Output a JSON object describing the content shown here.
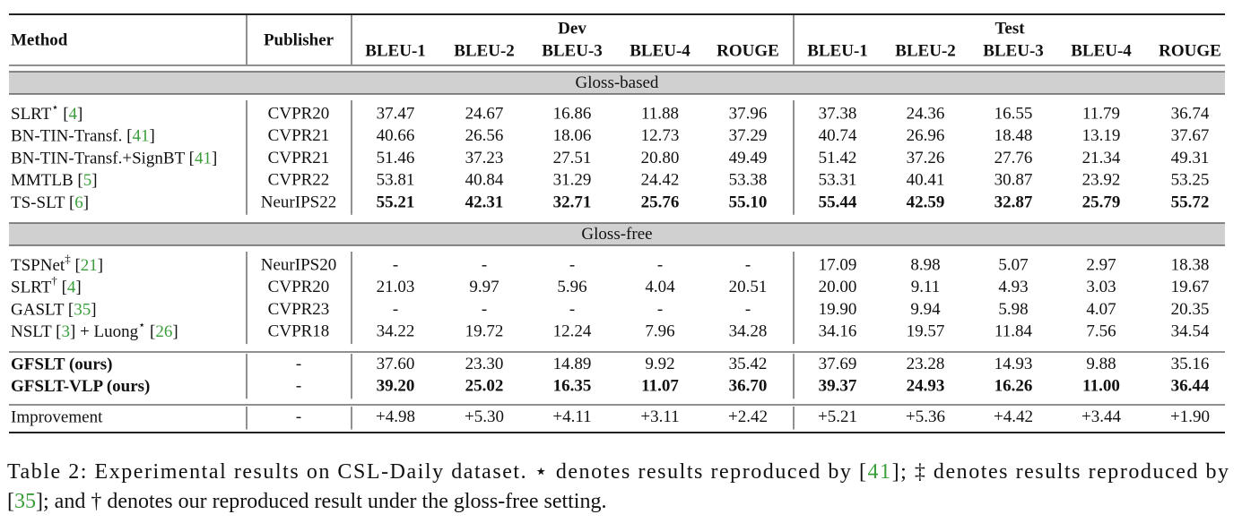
{
  "header": {
    "method": "Method",
    "publisher": "Publisher",
    "groups": [
      {
        "name": "Dev",
        "metrics": [
          "BLEU-1",
          "BLEU-2",
          "BLEU-3",
          "BLEU-4",
          "ROUGE"
        ]
      },
      {
        "name": "Test",
        "metrics": [
          "BLEU-1",
          "BLEU-2",
          "BLEU-3",
          "BLEU-4",
          "ROUGE"
        ]
      }
    ]
  },
  "sections": [
    {
      "title": "Gloss-based",
      "rows": [
        {
          "method": [
            {
              "text": "SLRT"
            },
            {
              "text": "⋆",
              "sup": true
            },
            {
              "text": " ["
            },
            {
              "text": "4",
              "color": "#3a9e3a"
            },
            {
              "text": "]"
            }
          ],
          "publisher": "CVPR20",
          "values": [
            "37.47",
            "24.67",
            "16.86",
            "11.88",
            "37.96",
            "37.38",
            "24.36",
            "16.55",
            "11.79",
            "36.74"
          ]
        },
        {
          "method": [
            {
              "text": "BN-TIN-Transf. ["
            },
            {
              "text": "41",
              "color": "#3a9e3a"
            },
            {
              "text": "]"
            }
          ],
          "publisher": "CVPR21",
          "values": [
            "40.66",
            "26.56",
            "18.06",
            "12.73",
            "37.29",
            "40.74",
            "26.96",
            "18.48",
            "13.19",
            "37.67"
          ]
        },
        {
          "method": [
            {
              "text": "BN-TIN-Transf.+SignBT ["
            },
            {
              "text": "41",
              "color": "#3a9e3a"
            },
            {
              "text": "]"
            }
          ],
          "publisher": "CVPR21",
          "values": [
            "51.46",
            "37.23",
            "27.51",
            "20.80",
            "49.49",
            "51.42",
            "37.26",
            "27.76",
            "21.34",
            "49.31"
          ]
        },
        {
          "method": [
            {
              "text": "MMTLB ["
            },
            {
              "text": "5",
              "color": "#3a9e3a"
            },
            {
              "text": "]"
            }
          ],
          "publisher": "CVPR22",
          "values": [
            "53.81",
            "40.84",
            "31.29",
            "24.42",
            "53.38",
            "53.31",
            "40.41",
            "30.87",
            "23.92",
            "53.25"
          ]
        },
        {
          "method": [
            {
              "text": "TS-SLT ["
            },
            {
              "text": "6",
              "color": "#3a9e3a"
            },
            {
              "text": "]"
            }
          ],
          "publisher": "NeurIPS22",
          "bold_values": true,
          "values": [
            "55.21",
            "42.31",
            "32.71",
            "25.76",
            "55.10",
            "55.44",
            "42.59",
            "32.87",
            "25.79",
            "55.72"
          ]
        }
      ]
    },
    {
      "title": "Gloss-free",
      "rows": [
        {
          "method": [
            {
              "text": "TSPNet"
            },
            {
              "text": "‡",
              "sup": true
            },
            {
              "text": "  ["
            },
            {
              "text": "21",
              "color": "#3a9e3a"
            },
            {
              "text": "]"
            }
          ],
          "publisher": "NeurIPS20",
          "values": [
            "-",
            "-",
            "-",
            "-",
            "-",
            "17.09",
            "8.98",
            "5.07",
            "2.97",
            "18.38"
          ]
        },
        {
          "method": [
            {
              "text": "SLRT"
            },
            {
              "text": "†",
              "sup": true
            },
            {
              "text": " ["
            },
            {
              "text": "4",
              "color": "#3a9e3a"
            },
            {
              "text": "]"
            }
          ],
          "publisher": "CVPR20",
          "values": [
            "21.03",
            "9.97",
            "5.96",
            "4.04",
            "20.51",
            "20.00",
            "9.11",
            "4.93",
            "3.03",
            "19.67"
          ]
        },
        {
          "method": [
            {
              "text": "GASLT ["
            },
            {
              "text": "35",
              "color": "#3a9e3a"
            },
            {
              "text": "]"
            }
          ],
          "publisher": "CVPR23",
          "values": [
            "-",
            "-",
            "-",
            "-",
            "-",
            "19.90",
            "9.94",
            "5.98",
            "4.07",
            "20.35"
          ]
        },
        {
          "method": [
            {
              "text": "NSLT ["
            },
            {
              "text": "3",
              "color": "#3a9e3a"
            },
            {
              "text": "] + Luong"
            },
            {
              "text": "⋆",
              "sup": true
            },
            {
              "text": " ["
            },
            {
              "text": "26",
              "color": "#3a9e3a"
            },
            {
              "text": "]"
            }
          ],
          "publisher": "CVPR18",
          "values": [
            "34.22",
            "19.72",
            "12.24",
            "7.96",
            "34.28",
            "34.16",
            "19.57",
            "11.84",
            "7.56",
            "34.54"
          ]
        }
      ]
    },
    {
      "rows": [
        {
          "method": [
            {
              "text": "GFSLT (ours)"
            }
          ],
          "publisher": "-",
          "bold_method": true,
          "values": [
            "37.60",
            "23.30",
            "14.89",
            "9.92",
            "35.42",
            "37.69",
            "23.28",
            "14.93",
            "9.88",
            "35.16"
          ]
        },
        {
          "method": [
            {
              "text": "GFSLT-VLP (ours)"
            }
          ],
          "publisher": "-",
          "bold_method": true,
          "bold_values": true,
          "values": [
            "39.20",
            "25.02",
            "16.35",
            "11.07",
            "36.70",
            "39.37",
            "24.93",
            "16.26",
            "11.00",
            "36.44"
          ]
        }
      ]
    },
    {
      "rows": [
        {
          "method": [
            {
              "text": "Improvement"
            }
          ],
          "publisher": "-",
          "color": "#8a8a8a",
          "values": [
            "+4.98",
            "+5.30",
            "+4.11",
            "+3.11",
            "+2.42",
            "+5.21",
            "+5.36",
            "+4.42",
            "+3.44",
            "+1.90"
          ]
        }
      ]
    }
  ],
  "caption": [
    [
      {
        "text": "Table 2: Experimental results on CSL-Daily dataset. ⋆ denotes results reproduced by ["
      },
      {
        "text": "41",
        "color": "#3a9e3a"
      },
      {
        "text": "]; ‡ denotes results reproduced by"
      }
    ],
    [
      {
        "text": "["
      },
      {
        "text": "35",
        "color": "#3a9e3a"
      },
      {
        "text": "]; and † denotes our reproduced result under the gloss-free setting."
      }
    ]
  ]
}
